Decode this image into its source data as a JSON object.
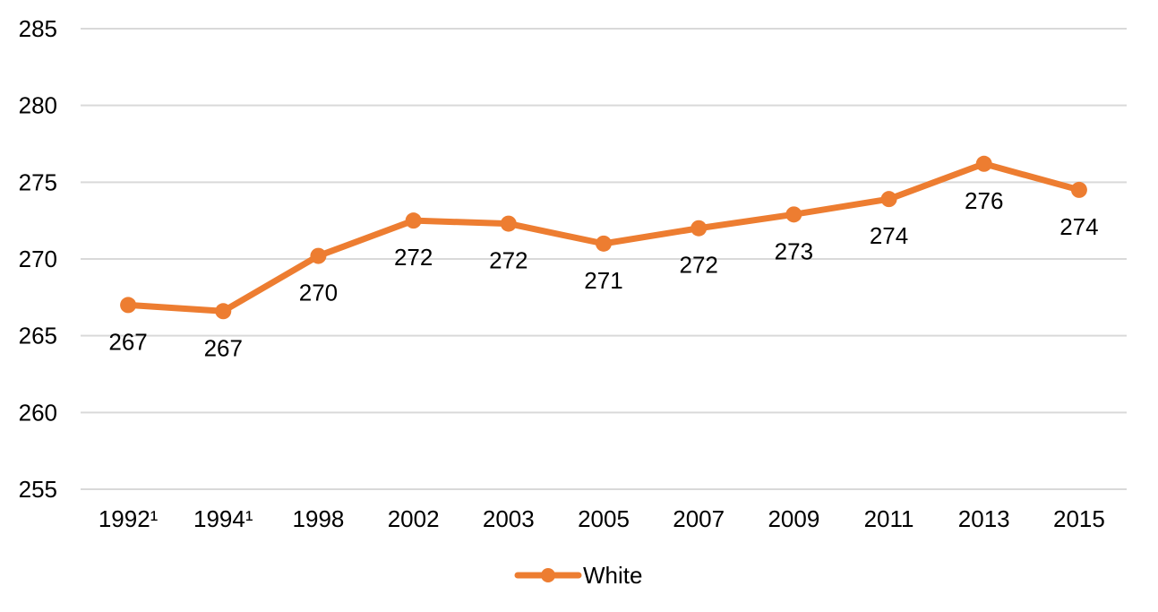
{
  "chart_data": {
    "type": "line",
    "categories": [
      "1992¹",
      "1994¹",
      "1998",
      "2002",
      "2003",
      "2005",
      "2007",
      "2009",
      "2011",
      "2013",
      "2015"
    ],
    "series": [
      {
        "name": "White",
        "color": "#ed7d31",
        "values": [
          267.0,
          266.6,
          270.2,
          272.5,
          272.3,
          271.0,
          272.0,
          272.9,
          273.9,
          276.2,
          274.5
        ],
        "labels": [
          "267",
          "267",
          "270",
          "272",
          "272",
          "271",
          "272",
          "273",
          "274",
          "276",
          "274"
        ]
      }
    ],
    "yticks": [
      "255",
      "260",
      "265",
      "270",
      "275",
      "280",
      "285"
    ],
    "ylim": [
      255,
      285
    ],
    "grid": true,
    "legend_position": "bottom"
  }
}
